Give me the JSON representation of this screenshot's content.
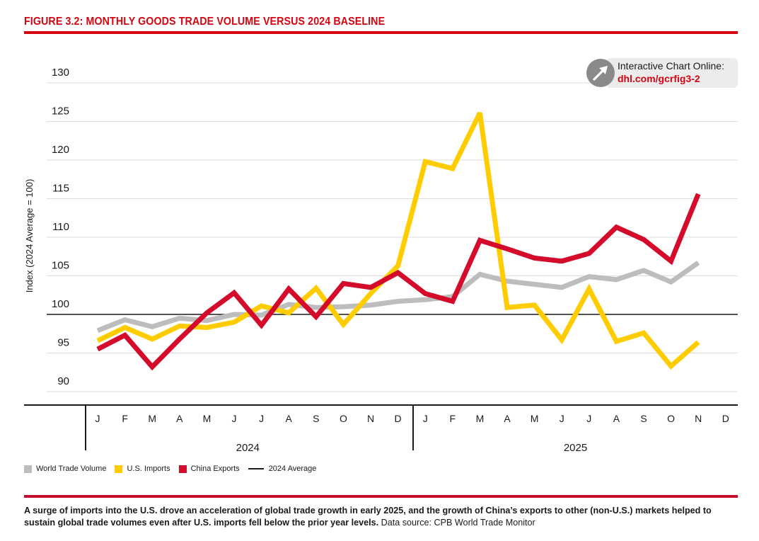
{
  "figure": {
    "title": "FIGURE 3.2: MONTHLY GOODS TRADE VOLUME VERSUS 2024 BASELINE",
    "callout": {
      "line1": "Interactive Chart Online:",
      "link": "dhl.com/gcrfig3-2",
      "icon": "arrow-link-icon"
    },
    "caption_bold": "A surge of imports into the U.S. drove an acceleration of global trade growth in early 2025, and the growth of China’s exports to other (non-U.S.) markets helped to sustain global trade volumes even after U.S. imports fell below the prior year levels.",
    "caption_source": " Data source: CPB World Trade Monitor"
  },
  "chart_data": {
    "type": "line",
    "title": "FIGURE 3.2: MONTHLY GOODS TRADE VOLUME VERSUS 2024 BASELINE",
    "ylabel": "Index (2024 Average = 100)",
    "xlabel": "",
    "ylim": [
      88,
      132
    ],
    "yticks": [
      90,
      95,
      100,
      105,
      110,
      115,
      120,
      125,
      130
    ],
    "grid": true,
    "legend_position": "bottom-left",
    "x": [
      "J",
      "F",
      "M",
      "A",
      "M",
      "J",
      "J",
      "A",
      "S",
      "O",
      "N",
      "D",
      "J",
      "F",
      "M",
      "A",
      "M",
      "J",
      "J",
      "A",
      "S",
      "O",
      "N",
      "D"
    ],
    "year_groups": [
      {
        "label": "2024",
        "start": 0,
        "end": 11
      },
      {
        "label": "2025",
        "start": 12,
        "end": 23
      }
    ],
    "baseline": {
      "name": "2024 Average",
      "value": 100,
      "color": "#1a1a1a"
    },
    "series": [
      {
        "name": "World Trade Volume",
        "color": "#bdbdbd",
        "values": [
          97.9,
          99.3,
          98.4,
          99.5,
          99.2,
          100.0,
          99.9,
          101.3,
          100.9,
          101.0,
          101.2,
          101.7,
          101.9,
          102.3,
          105.2,
          104.3,
          103.9,
          103.5,
          104.9,
          104.5,
          105.7,
          104.2,
          106.7,
          null
        ]
      },
      {
        "name": "U.S. Imports",
        "color": "#ffcc00",
        "values": [
          96.6,
          98.3,
          96.8,
          98.5,
          98.3,
          99.0,
          101.1,
          100.2,
          103.4,
          98.7,
          102.7,
          106.3,
          119.8,
          118.9,
          126.1,
          100.9,
          101.2,
          96.7,
          103.3,
          96.5,
          97.6,
          93.3,
          96.4,
          null
        ]
      },
      {
        "name": "China Exports",
        "color": "#d40b2b",
        "values": [
          95.5,
          97.3,
          93.2,
          96.8,
          100.2,
          102.8,
          98.6,
          103.3,
          99.7,
          104.0,
          103.5,
          105.4,
          102.7,
          101.7,
          109.6,
          108.5,
          107.3,
          106.9,
          107.9,
          111.3,
          109.7,
          106.9,
          115.6,
          null
        ]
      }
    ]
  }
}
